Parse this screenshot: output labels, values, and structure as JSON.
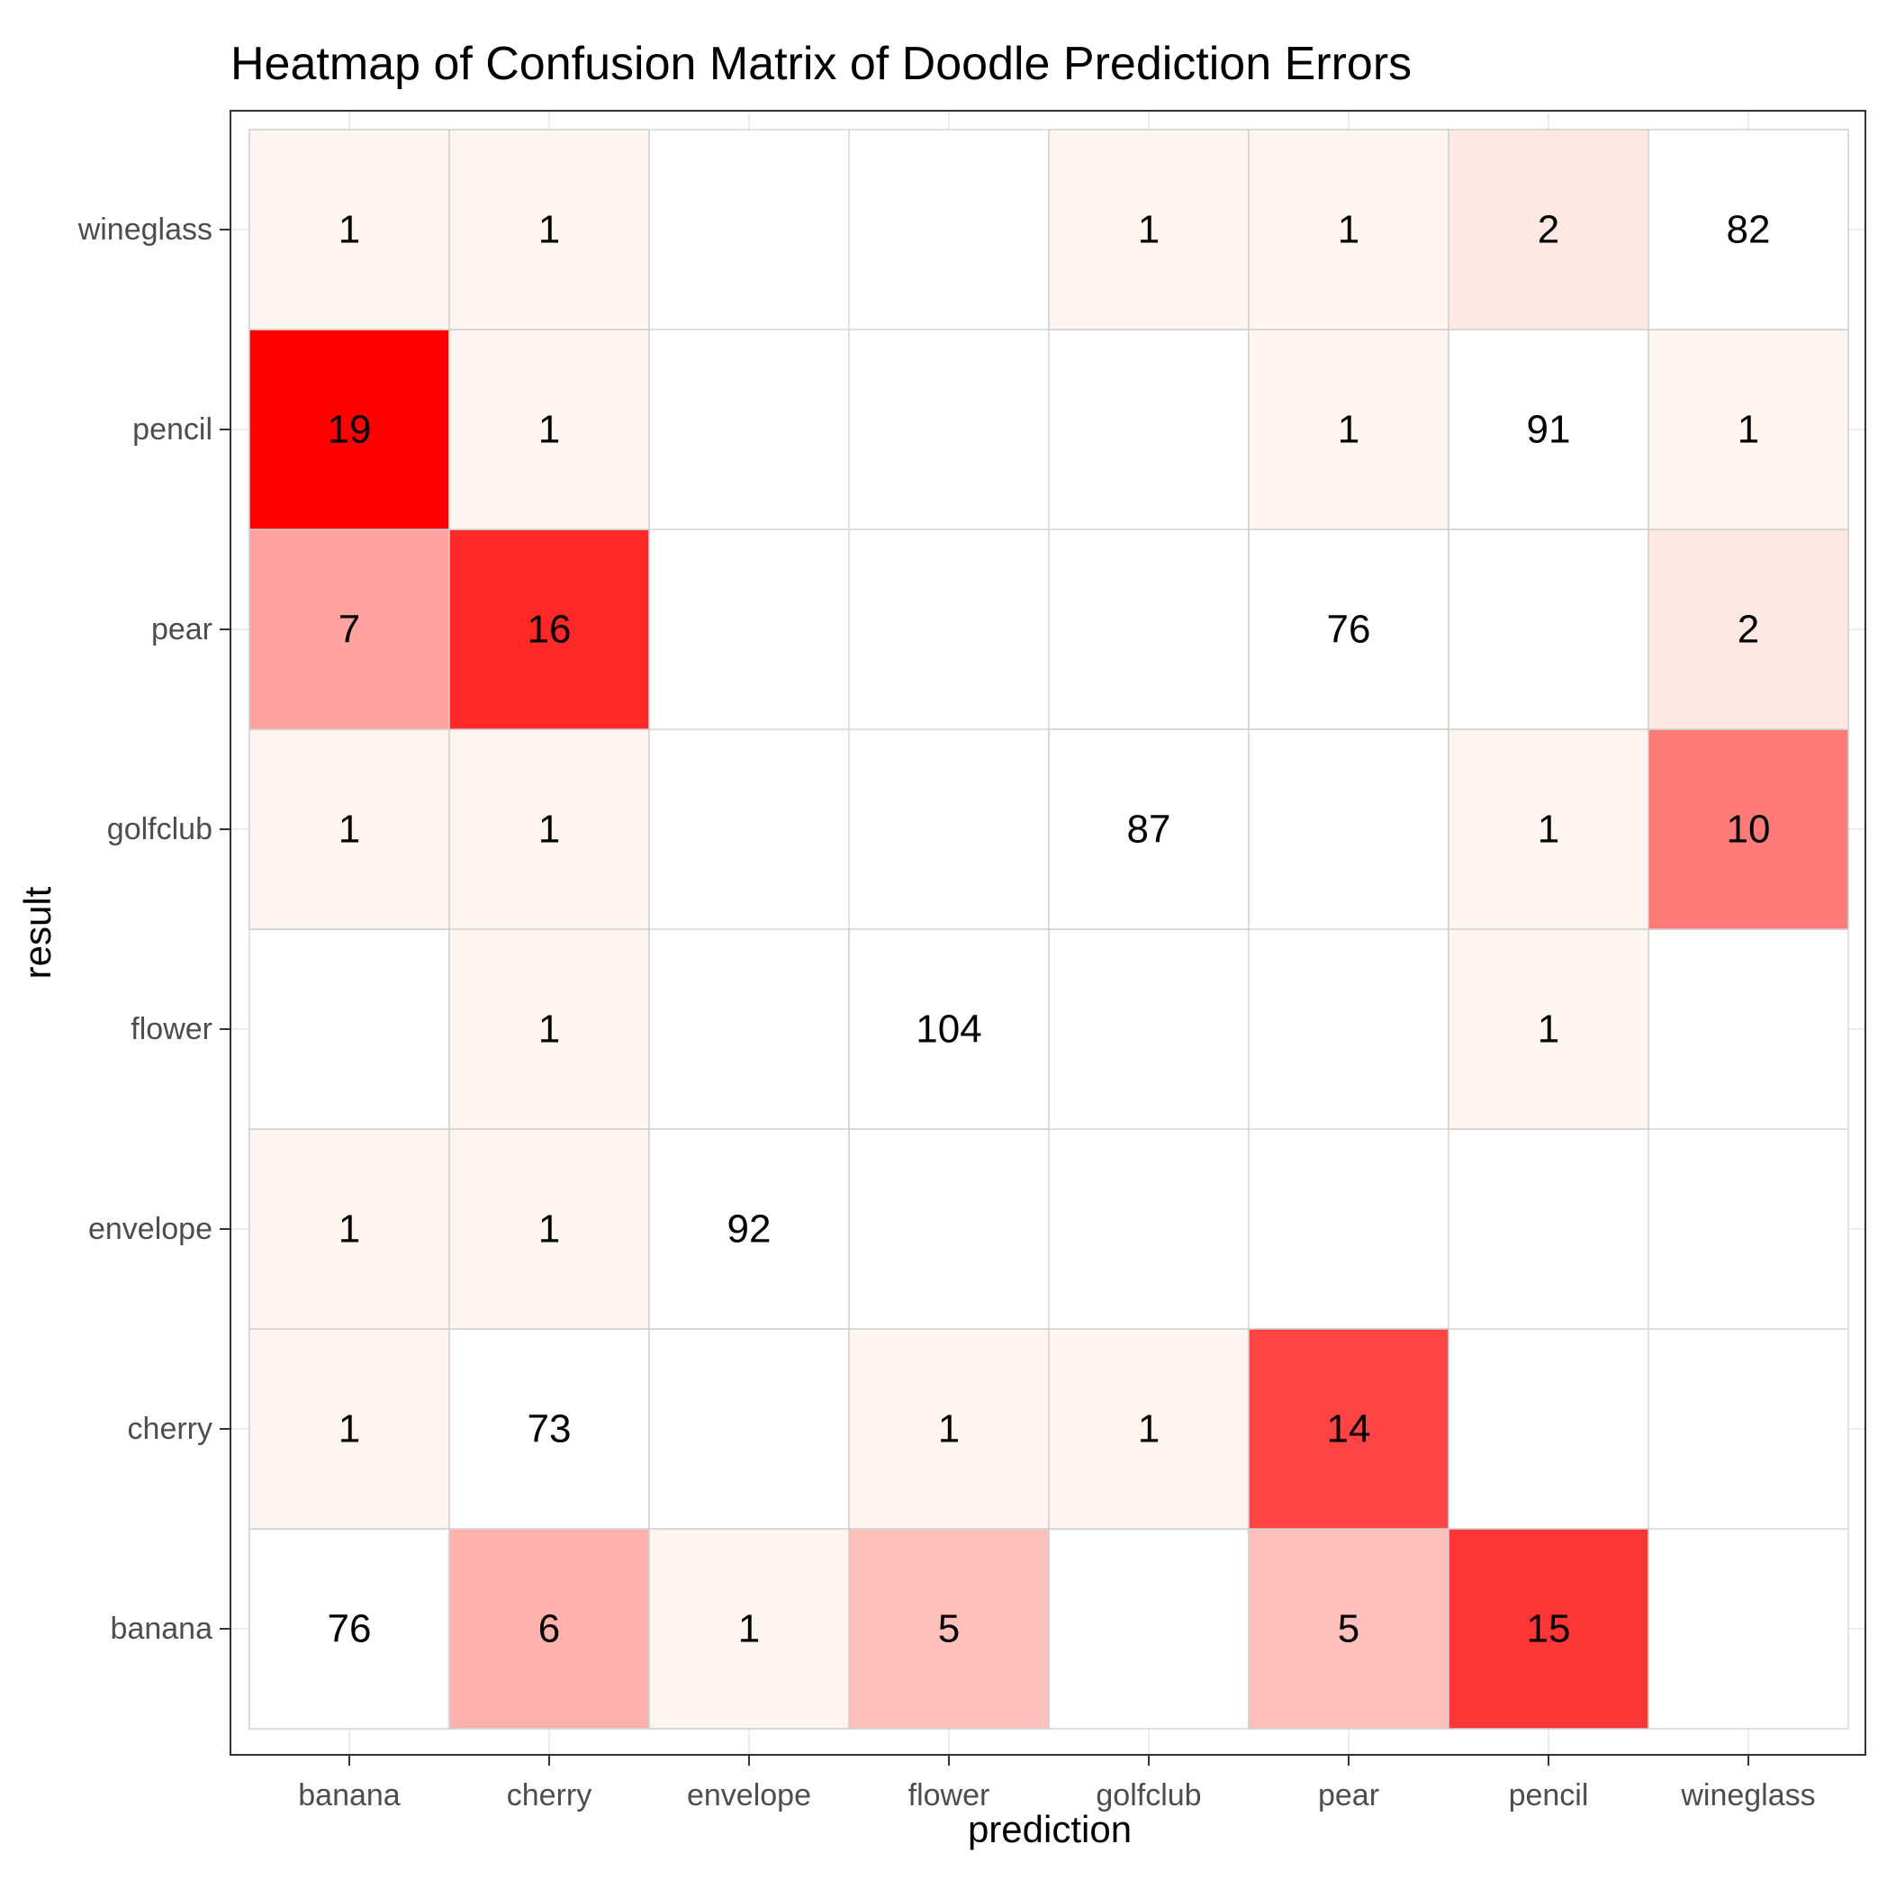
{
  "chart_data": {
    "type": "heatmap",
    "title": "Heatmap of Confusion Matrix of Doodle Prediction Errors",
    "xlabel": "prediction",
    "ylabel": "result",
    "x_categories": [
      "banana",
      "cherry",
      "envelope",
      "flower",
      "golfclub",
      "pear",
      "pencil",
      "wineglass"
    ],
    "y_categories": [
      "banana",
      "cherry",
      "envelope",
      "flower",
      "golfclub",
      "pear",
      "pencil",
      "wineglass"
    ],
    "cells": [
      {
        "x": "banana",
        "y": "banana",
        "value": 76
      },
      {
        "x": "cherry",
        "y": "banana",
        "value": 6
      },
      {
        "x": "envelope",
        "y": "banana",
        "value": 1
      },
      {
        "x": "flower",
        "y": "banana",
        "value": 5
      },
      {
        "x": "pear",
        "y": "banana",
        "value": 5
      },
      {
        "x": "pencil",
        "y": "banana",
        "value": 15
      },
      {
        "x": "banana",
        "y": "cherry",
        "value": 1
      },
      {
        "x": "cherry",
        "y": "cherry",
        "value": 73
      },
      {
        "x": "flower",
        "y": "cherry",
        "value": 1
      },
      {
        "x": "golfclub",
        "y": "cherry",
        "value": 1
      },
      {
        "x": "pear",
        "y": "cherry",
        "value": 14
      },
      {
        "x": "banana",
        "y": "envelope",
        "value": 1
      },
      {
        "x": "cherry",
        "y": "envelope",
        "value": 1
      },
      {
        "x": "envelope",
        "y": "envelope",
        "value": 92
      },
      {
        "x": "cherry",
        "y": "flower",
        "value": 1
      },
      {
        "x": "flower",
        "y": "flower",
        "value": 104
      },
      {
        "x": "pencil",
        "y": "flower",
        "value": 1
      },
      {
        "x": "banana",
        "y": "golfclub",
        "value": 1
      },
      {
        "x": "cherry",
        "y": "golfclub",
        "value": 1
      },
      {
        "x": "golfclub",
        "y": "golfclub",
        "value": 87
      },
      {
        "x": "pencil",
        "y": "golfclub",
        "value": 1
      },
      {
        "x": "wineglass",
        "y": "golfclub",
        "value": 10
      },
      {
        "x": "banana",
        "y": "pear",
        "value": 7
      },
      {
        "x": "cherry",
        "y": "pear",
        "value": 16
      },
      {
        "x": "pear",
        "y": "pear",
        "value": 76
      },
      {
        "x": "wineglass",
        "y": "pear",
        "value": 2
      },
      {
        "x": "banana",
        "y": "pencil",
        "value": 19
      },
      {
        "x": "cherry",
        "y": "pencil",
        "value": 1
      },
      {
        "x": "pear",
        "y": "pencil",
        "value": 1
      },
      {
        "x": "pencil",
        "y": "pencil",
        "value": 91
      },
      {
        "x": "wineglass",
        "y": "pencil",
        "value": 1
      },
      {
        "x": "banana",
        "y": "wineglass",
        "value": 1
      },
      {
        "x": "cherry",
        "y": "wineglass",
        "value": 1
      },
      {
        "x": "golfclub",
        "y": "wineglass",
        "value": 1
      },
      {
        "x": "pear",
        "y": "wineglass",
        "value": 1
      },
      {
        "x": "pencil",
        "y": "wineglass",
        "value": 2
      },
      {
        "x": "wineglass",
        "y": "wineglass",
        "value": 82
      }
    ],
    "color_scale": {
      "diagonal_fill": "#ffffff",
      "low": "#fff5f0",
      "high": "#ff0000",
      "range": [
        1,
        19
      ]
    },
    "grid": true,
    "legend": "none"
  }
}
